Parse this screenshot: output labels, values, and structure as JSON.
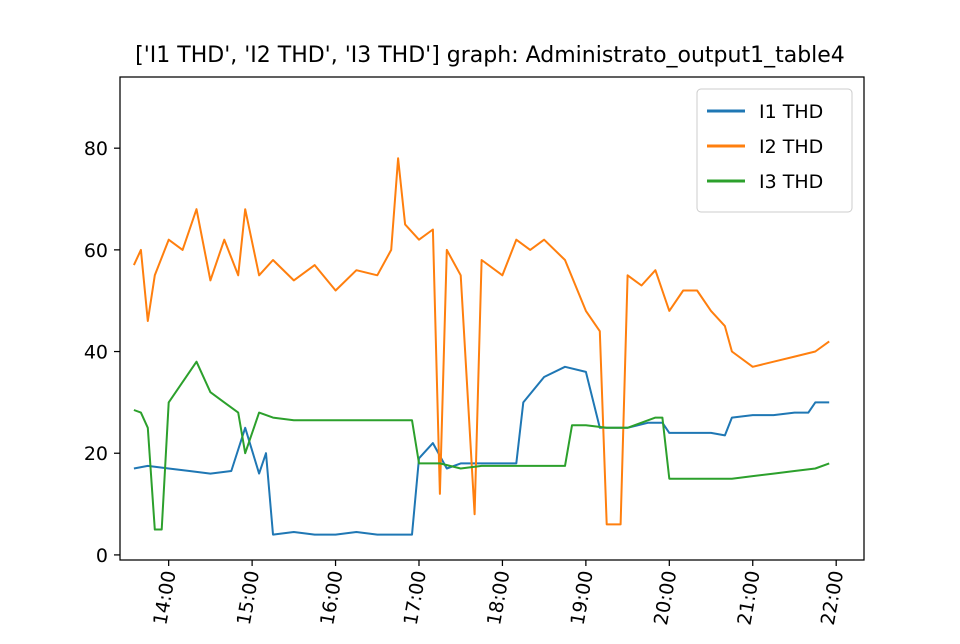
{
  "chart_data": {
    "type": "line",
    "title": "['I1 THD', 'I2 THD', 'I3 THD'] graph: Administrato_output1_table4",
    "xlabel": "",
    "ylabel": "",
    "x_range": [
      "13:25",
      "22:20"
    ],
    "ylim": [
      -1,
      94
    ],
    "x_ticks": [
      "14:00",
      "15:00",
      "16:00",
      "17:00",
      "18:00",
      "19:00",
      "20:00",
      "21:00",
      "22:00"
    ],
    "y_ticks": [
      0,
      20,
      40,
      60,
      80
    ],
    "grid": false,
    "legend": "top-right",
    "series": [
      {
        "name": "I1 THD",
        "color": "#1f77b4",
        "points": [
          [
            "13:35",
            17
          ],
          [
            "13:45",
            17.5
          ],
          [
            "14:00",
            17
          ],
          [
            "14:15",
            16.5
          ],
          [
            "14:30",
            16
          ],
          [
            "14:45",
            16.5
          ],
          [
            "14:55",
            25
          ],
          [
            "15:05",
            16
          ],
          [
            "15:10",
            20
          ],
          [
            "15:15",
            4
          ],
          [
            "15:30",
            4.5
          ],
          [
            "15:45",
            4
          ],
          [
            "16:00",
            4
          ],
          [
            "16:15",
            4.5
          ],
          [
            "16:30",
            4
          ],
          [
            "16:45",
            4
          ],
          [
            "16:55",
            4
          ],
          [
            "17:00",
            19
          ],
          [
            "17:10",
            22
          ],
          [
            "17:20",
            17
          ],
          [
            "17:30",
            18
          ],
          [
            "17:45",
            18
          ],
          [
            "18:00",
            18
          ],
          [
            "18:10",
            18
          ],
          [
            "18:15",
            30
          ],
          [
            "18:30",
            35
          ],
          [
            "18:45",
            37
          ],
          [
            "19:00",
            36
          ],
          [
            "19:10",
            25
          ],
          [
            "19:30",
            25
          ],
          [
            "19:45",
            26
          ],
          [
            "19:55",
            26
          ],
          [
            "20:00",
            24
          ],
          [
            "20:15",
            24
          ],
          [
            "20:30",
            24
          ],
          [
            "20:40",
            23.5
          ],
          [
            "20:45",
            27
          ],
          [
            "21:00",
            27.5
          ],
          [
            "21:15",
            27.5
          ],
          [
            "21:30",
            28
          ],
          [
            "21:40",
            28
          ],
          [
            "21:45",
            30
          ],
          [
            "21:55",
            30
          ]
        ]
      },
      {
        "name": "I2 THD",
        "color": "#ff7f0e",
        "points": [
          [
            "13:35",
            57
          ],
          [
            "13:40",
            60
          ],
          [
            "13:45",
            46
          ],
          [
            "13:50",
            55
          ],
          [
            "14:00",
            62
          ],
          [
            "14:10",
            60
          ],
          [
            "14:20",
            68
          ],
          [
            "14:30",
            54
          ],
          [
            "14:40",
            62
          ],
          [
            "14:50",
            55
          ],
          [
            "14:55",
            68
          ],
          [
            "15:05",
            55
          ],
          [
            "15:15",
            58
          ],
          [
            "15:30",
            54
          ],
          [
            "15:45",
            57
          ],
          [
            "16:00",
            52
          ],
          [
            "16:15",
            56
          ],
          [
            "16:30",
            55
          ],
          [
            "16:40",
            60
          ],
          [
            "16:45",
            78
          ],
          [
            "16:50",
            65
          ],
          [
            "17:00",
            62
          ],
          [
            "17:10",
            64
          ],
          [
            "17:15",
            12
          ],
          [
            "17:20",
            60
          ],
          [
            "17:30",
            55
          ],
          [
            "17:40",
            8
          ],
          [
            "17:45",
            58
          ],
          [
            "18:00",
            55
          ],
          [
            "18:10",
            62
          ],
          [
            "18:20",
            60
          ],
          [
            "18:30",
            62
          ],
          [
            "18:45",
            58
          ],
          [
            "19:00",
            48
          ],
          [
            "19:10",
            44
          ],
          [
            "19:15",
            6
          ],
          [
            "19:25",
            6
          ],
          [
            "19:30",
            55
          ],
          [
            "19:40",
            53
          ],
          [
            "19:50",
            56
          ],
          [
            "20:00",
            48
          ],
          [
            "20:10",
            52
          ],
          [
            "20:20",
            52
          ],
          [
            "20:30",
            48
          ],
          [
            "20:40",
            45
          ],
          [
            "20:45",
            40
          ],
          [
            "21:00",
            37
          ],
          [
            "21:15",
            38
          ],
          [
            "21:30",
            39
          ],
          [
            "21:45",
            40
          ],
          [
            "21:55",
            42
          ]
        ]
      },
      {
        "name": "I3 THD",
        "color": "#2ca02c",
        "points": [
          [
            "13:35",
            28.5
          ],
          [
            "13:40",
            28
          ],
          [
            "13:45",
            25
          ],
          [
            "13:50",
            5
          ],
          [
            "13:55",
            5
          ],
          [
            "14:00",
            30
          ],
          [
            "14:10",
            34
          ],
          [
            "14:20",
            38
          ],
          [
            "14:30",
            32
          ],
          [
            "14:40",
            30
          ],
          [
            "14:50",
            28
          ],
          [
            "14:55",
            20
          ],
          [
            "15:05",
            28
          ],
          [
            "15:15",
            27
          ],
          [
            "15:30",
            26.5
          ],
          [
            "15:45",
            26.5
          ],
          [
            "16:00",
            26.5
          ],
          [
            "16:15",
            26.5
          ],
          [
            "16:30",
            26.5
          ],
          [
            "16:45",
            26.5
          ],
          [
            "16:55",
            26.5
          ],
          [
            "17:00",
            18
          ],
          [
            "17:15",
            18
          ],
          [
            "17:30",
            17
          ],
          [
            "17:45",
            17.5
          ],
          [
            "18:00",
            17.5
          ],
          [
            "18:15",
            17.5
          ],
          [
            "18:30",
            17.5
          ],
          [
            "18:45",
            17.5
          ],
          [
            "18:50",
            25.5
          ],
          [
            "19:00",
            25.5
          ],
          [
            "19:15",
            25
          ],
          [
            "19:30",
            25
          ],
          [
            "19:40",
            26
          ],
          [
            "19:50",
            27
          ],
          [
            "19:55",
            27
          ],
          [
            "20:00",
            15
          ],
          [
            "20:15",
            15
          ],
          [
            "20:30",
            15
          ],
          [
            "20:45",
            15
          ],
          [
            "21:00",
            15.5
          ],
          [
            "21:15",
            16
          ],
          [
            "21:30",
            16.5
          ],
          [
            "21:45",
            17
          ],
          [
            "21:55",
            18
          ]
        ]
      }
    ]
  }
}
